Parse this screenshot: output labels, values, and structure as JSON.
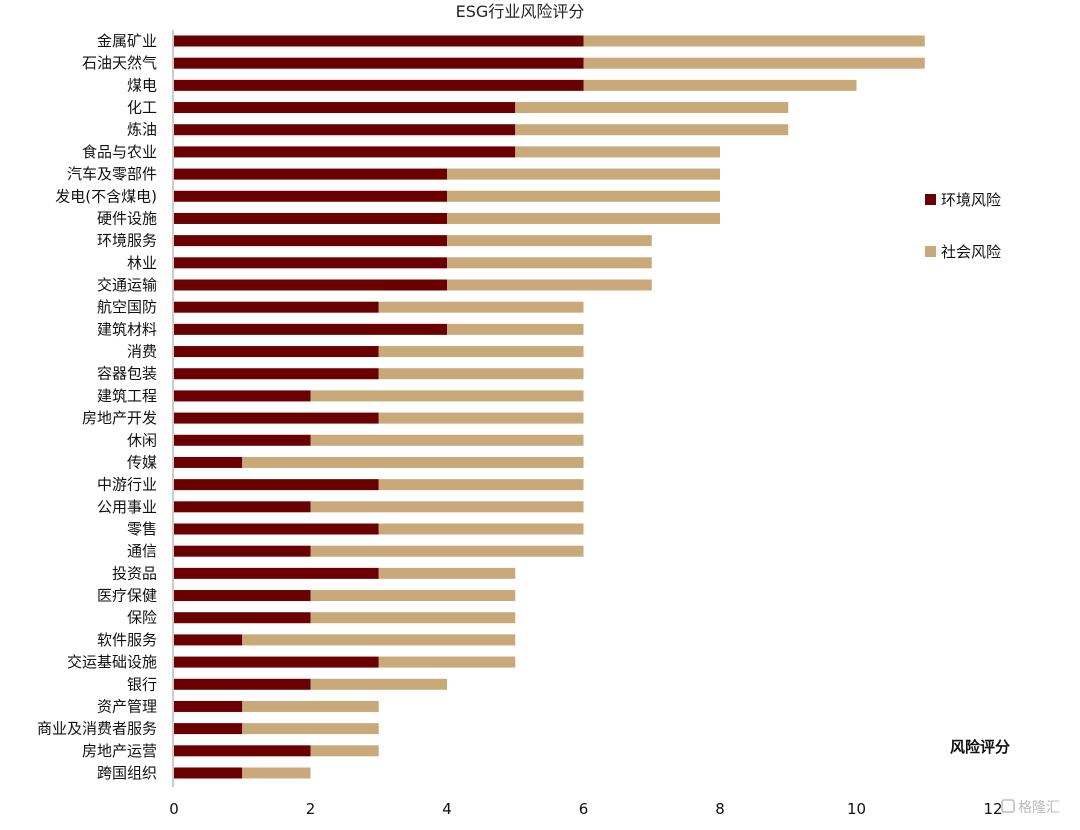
{
  "chart_data": {
    "type": "bar",
    "orientation": "horizontal",
    "stacked": true,
    "title": "ESG行业风险评分",
    "xlabel": "风险评分",
    "ylabel": "",
    "xlim": [
      0,
      12
    ],
    "xticks": [
      0,
      2,
      4,
      6,
      8,
      10,
      12
    ],
    "legend_position": "right",
    "grid": false,
    "categories": [
      "金属矿业",
      "石油天然气",
      "煤电",
      "化工",
      "炼油",
      "食品与农业",
      "汽车及零部件",
      "发电(不含煤电)",
      "硬件设施",
      "环境服务",
      "林业",
      "交通运输",
      "航空国防",
      "建筑材料",
      "消费",
      "容器包装",
      "建筑工程",
      "房地产开发",
      "休闲",
      "传媒",
      "中游行业",
      "公用事业",
      "零售",
      "通信",
      "投资品",
      "医疗保健",
      "保险",
      "软件服务",
      "交运基础设施",
      "银行",
      "资产管理",
      "商业及消费者服务",
      "房地产运营",
      "跨国组织"
    ],
    "series": [
      {
        "name": "环境风险",
        "color": "#6b0000",
        "values": [
          6,
          6,
          6,
          5,
          5,
          5,
          4,
          4,
          4,
          4,
          4,
          4,
          3,
          4,
          3,
          3,
          2,
          3,
          2,
          1,
          3,
          2,
          3,
          2,
          3,
          2,
          2,
          1,
          3,
          2,
          1,
          1,
          2,
          1
        ]
      },
      {
        "name": "社会风险",
        "color": "#c9a87a",
        "values": [
          5,
          5,
          4,
          4,
          4,
          3,
          4,
          4,
          4,
          3,
          3,
          3,
          3,
          2,
          3,
          3,
          4,
          3,
          4,
          5,
          3,
          4,
          3,
          4,
          2,
          3,
          3,
          4,
          2,
          2,
          2,
          2,
          1,
          1
        ]
      }
    ]
  },
  "watermark": "格隆汇",
  "watermark_icon": "glh-logo-icon"
}
